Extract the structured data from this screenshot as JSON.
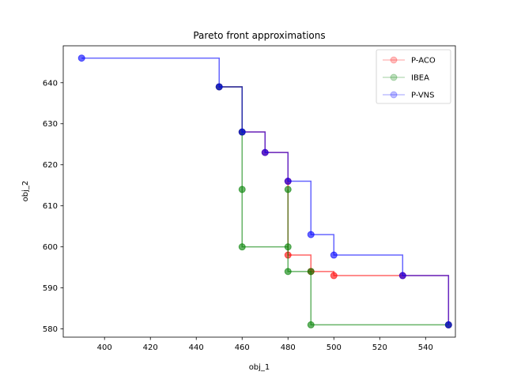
{
  "chart_data": {
    "type": "line",
    "title": "Pareto front approximations",
    "xlabel": "obj_1",
    "ylabel": "obj_2",
    "xlim": [
      382,
      553
    ],
    "ylim": [
      578,
      649
    ],
    "xticks": [
      400,
      420,
      440,
      460,
      480,
      500,
      520,
      540
    ],
    "yticks": [
      580,
      590,
      600,
      610,
      620,
      630,
      640
    ],
    "grid": false,
    "legend_position": "top-right",
    "step_style": "post",
    "series": [
      {
        "name": "P-ACO",
        "color": "#ff0000",
        "points": [
          [
            450,
            639
          ],
          [
            460,
            628
          ],
          [
            470,
            623
          ],
          [
            480,
            616
          ],
          [
            480,
            598
          ],
          [
            490,
            594
          ],
          [
            500,
            593
          ],
          [
            530,
            593
          ],
          [
            550,
            581
          ]
        ]
      },
      {
        "name": "IBEA",
        "color": "#008000",
        "points": [
          [
            450,
            639
          ],
          [
            460,
            628
          ],
          [
            460,
            614
          ],
          [
            460,
            600
          ],
          [
            480,
            614
          ],
          [
            480,
            600
          ],
          [
            480,
            594
          ],
          [
            490,
            594
          ],
          [
            490,
            581
          ],
          [
            550,
            581
          ]
        ]
      },
      {
        "name": "P-VNS",
        "color": "#0000ff",
        "points": [
          [
            390,
            646
          ],
          [
            450,
            639
          ],
          [
            460,
            628
          ],
          [
            470,
            623
          ],
          [
            480,
            616
          ],
          [
            490,
            603
          ],
          [
            500,
            598
          ],
          [
            530,
            593
          ],
          [
            550,
            581
          ]
        ]
      }
    ]
  }
}
